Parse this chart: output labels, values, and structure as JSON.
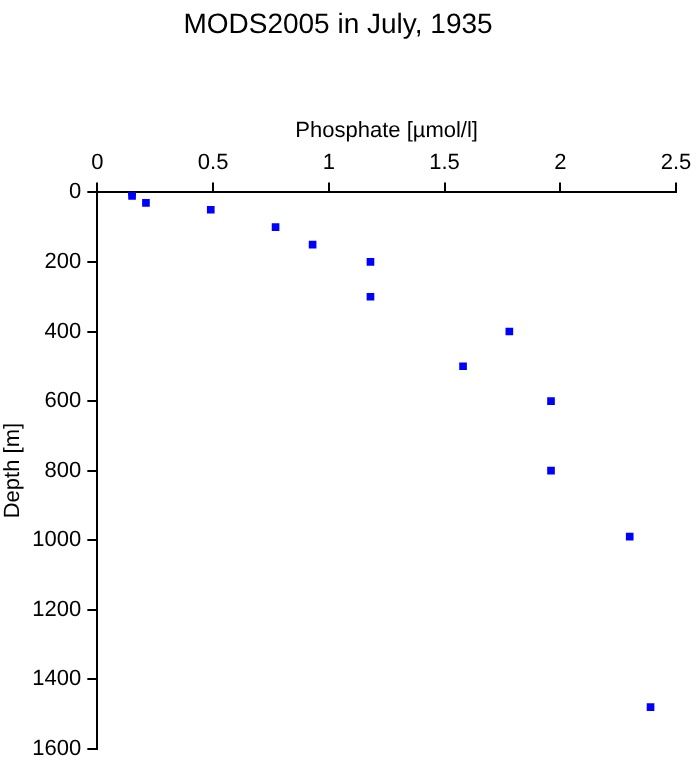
{
  "chart_data": {
    "type": "scatter",
    "title": "MODS2005 in July, 1935",
    "xlabel": "Phosphate [µmol/l]",
    "ylabel": "Depth [m]",
    "x": [
      0.15,
      0.15,
      0.21,
      0.49,
      0.77,
      0.93,
      1.18,
      1.18,
      1.78,
      1.58,
      1.96,
      1.96,
      2.3,
      2.39
    ],
    "series": [
      {
        "color": "#0000ff",
        "values": [
          0,
          10,
          30,
          50,
          100,
          150,
          200,
          300,
          400,
          500,
          600,
          800,
          990,
          1480
        ]
      }
    ],
    "xlim": [
      0,
      2.5
    ],
    "xticks": [
      0,
      0.5,
      1,
      1.5,
      2,
      2.5
    ],
    "ylim": [
      1600,
      0
    ],
    "yticks": [
      0,
      200,
      400,
      600,
      800,
      1000,
      1200,
      1400,
      1600
    ],
    "marker": "square",
    "grid": false,
    "legend": false
  }
}
